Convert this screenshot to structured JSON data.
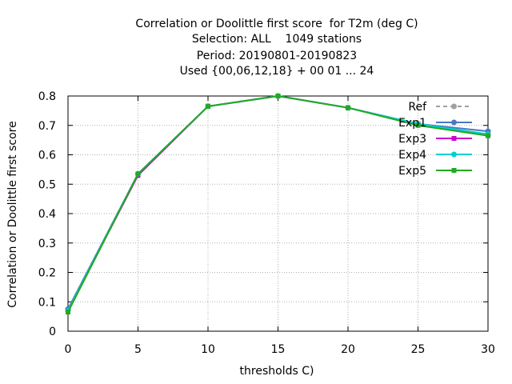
{
  "chart_data": {
    "type": "line",
    "title": [
      "Correlation or Doolittle first score  for T2m (deg C)",
      "Selection: ALL    1049 stations",
      "Period: 20190801-20190823",
      "Used {00,06,12,18} + 00 01 ... 24"
    ],
    "xlabel": "thresholds C)",
    "ylabel": "Correlation or Doolittle first score",
    "xlim": [
      0,
      30
    ],
    "ylim": [
      0,
      0.8
    ],
    "x_ticks": [
      "0",
      "5",
      "10",
      "15",
      "20",
      "25",
      "30"
    ],
    "y_ticks": [
      "0",
      "0.1",
      "0.2",
      "0.3",
      "0.4",
      "0.5",
      "0.6",
      "0.7",
      "0.8"
    ],
    "grid": true,
    "legend_position": "top-right",
    "x": [
      0,
      5,
      10,
      15,
      20,
      25,
      30
    ],
    "series": [
      {
        "name": "Ref",
        "color": "#a0a0a0",
        "dash": true,
        "marker": "circle",
        "values": [
          0.075,
          0.535,
          0.765,
          0.8,
          0.76,
          0.705,
          0.665
        ]
      },
      {
        "name": "Exp1",
        "color": "#4a78c4",
        "dash": false,
        "marker": "circle",
        "values": [
          0.075,
          0.535,
          0.765,
          0.8,
          0.76,
          0.705,
          0.68
        ]
      },
      {
        "name": "Exp3",
        "color": "#cc00cc",
        "dash": false,
        "marker": "square",
        "values": [
          0.07,
          0.53,
          0.765,
          0.8,
          0.76,
          0.705,
          0.665
        ]
      },
      {
        "name": "Exp4",
        "color": "#00d0d0",
        "dash": false,
        "marker": "circle",
        "values": [
          0.07,
          0.535,
          0.765,
          0.8,
          0.76,
          0.705,
          0.67
        ]
      },
      {
        "name": "Exp5",
        "color": "#22aa22",
        "dash": false,
        "marker": "square",
        "values": [
          0.065,
          0.535,
          0.765,
          0.8,
          0.76,
          0.7,
          0.665
        ]
      }
    ]
  }
}
